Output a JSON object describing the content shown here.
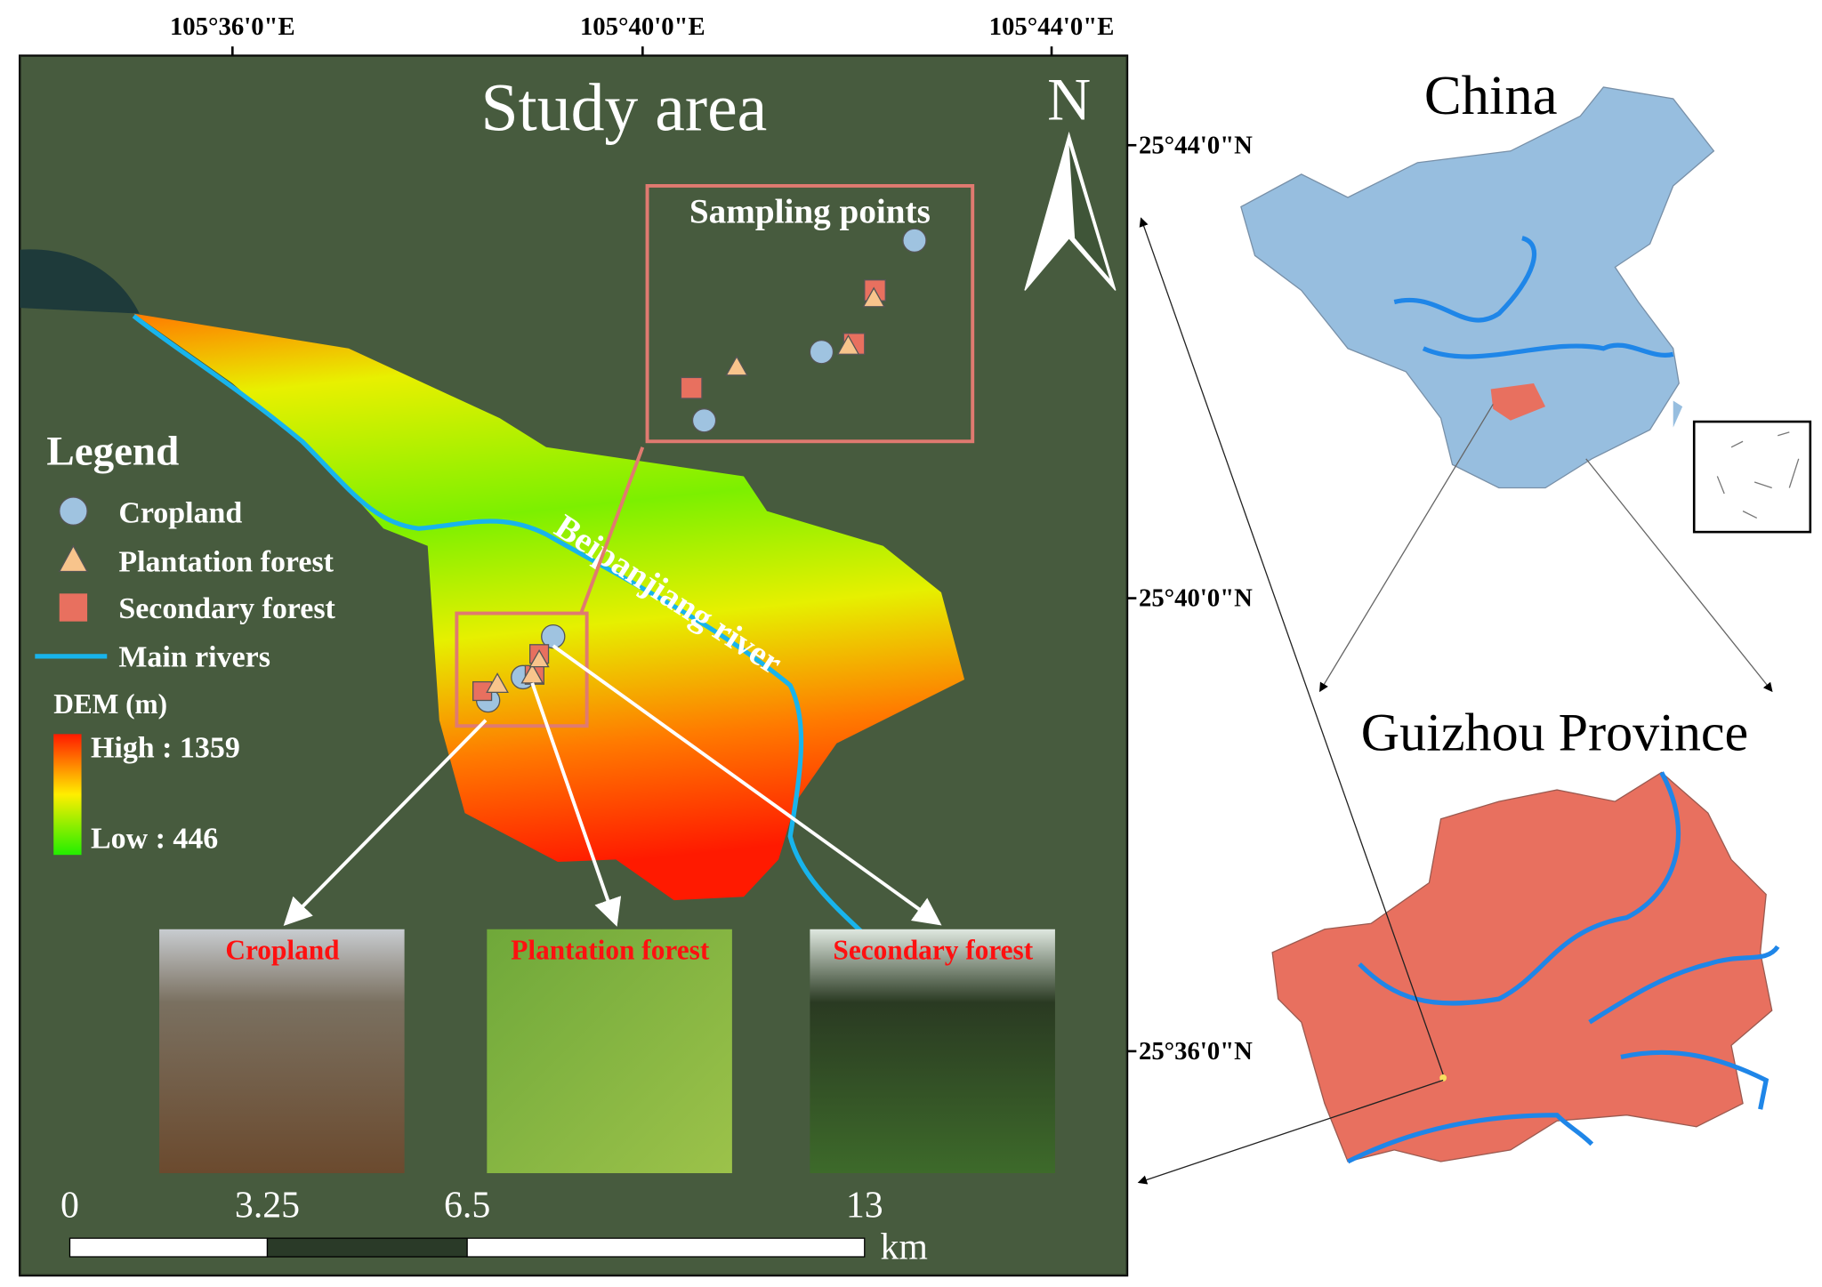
{
  "map": {
    "title": "Study area",
    "north": "N",
    "lon_labels": [
      "105°36'0\"E",
      "105°40'0\"E",
      "105°44'0\"E"
    ],
    "lat_labels": [
      "25°44'0\"N",
      "25°40'0\"N",
      "25°36'0\"N"
    ],
    "sampling_title": "Sampling points",
    "river_label": "Beipanjiang river",
    "legend": {
      "title": "Legend",
      "items": [
        "Cropland",
        "Plantation forest",
        "Secondary forest",
        "Main rivers"
      ],
      "dem_title": "DEM (m)",
      "high": "High : 1359",
      "low": "Low : 446"
    },
    "photos": [
      "Cropland",
      "Plantation forest",
      "Secondary forest"
    ],
    "scale_bar": {
      "labels": [
        "0",
        "3.25",
        "6.5",
        "13"
      ],
      "unit": "km"
    },
    "china_title": "China",
    "province_title": "Guizhou Province"
  }
}
